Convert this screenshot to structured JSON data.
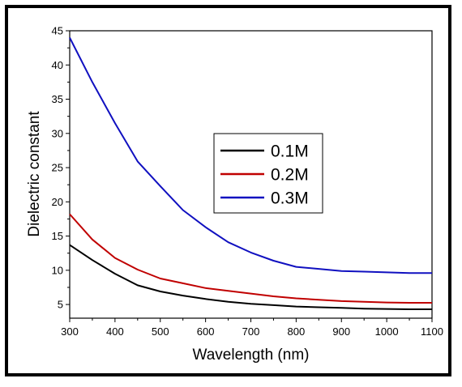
{
  "chart_data": {
    "type": "line",
    "title": "",
    "xlabel": "Wavelength (nm)",
    "ylabel": "Dielectric constant",
    "xlim": [
      300,
      1100
    ],
    "ylim": [
      3,
      45
    ],
    "xticks": [
      300,
      400,
      500,
      600,
      700,
      800,
      900,
      1000,
      1100
    ],
    "yticks": [
      5,
      10,
      15,
      20,
      25,
      30,
      35,
      40,
      45
    ],
    "grid": false,
    "legend_position": "center-right",
    "series": [
      {
        "name": "0.1M",
        "color": "#000000",
        "x": [
          300,
          350,
          400,
          450,
          500,
          550,
          600,
          650,
          700,
          750,
          800,
          850,
          900,
          950,
          1000,
          1050,
          1100
        ],
        "values": [
          13.7,
          11.5,
          9.5,
          7.8,
          6.9,
          6.3,
          5.8,
          5.4,
          5.1,
          4.9,
          4.7,
          4.6,
          4.5,
          4.4,
          4.35,
          4.3,
          4.3
        ]
      },
      {
        "name": "0.2M",
        "color": "#c00000",
        "x": [
          300,
          350,
          400,
          450,
          500,
          550,
          600,
          650,
          700,
          750,
          800,
          850,
          900,
          950,
          1000,
          1050,
          1100
        ],
        "values": [
          18.2,
          14.5,
          11.8,
          10.1,
          8.8,
          8.1,
          7.4,
          7.0,
          6.6,
          6.2,
          5.9,
          5.7,
          5.5,
          5.4,
          5.3,
          5.25,
          5.25
        ]
      },
      {
        "name": "0.3M",
        "color": "#1010c0",
        "x": [
          300,
          350,
          400,
          450,
          500,
          550,
          600,
          650,
          700,
          750,
          800,
          850,
          900,
          950,
          1000,
          1050,
          1100
        ],
        "values": [
          44.0,
          37.5,
          31.5,
          25.9,
          22.3,
          18.8,
          16.3,
          14.1,
          12.6,
          11.4,
          10.5,
          10.2,
          9.9,
          9.8,
          9.7,
          9.6,
          9.6
        ]
      }
    ]
  }
}
